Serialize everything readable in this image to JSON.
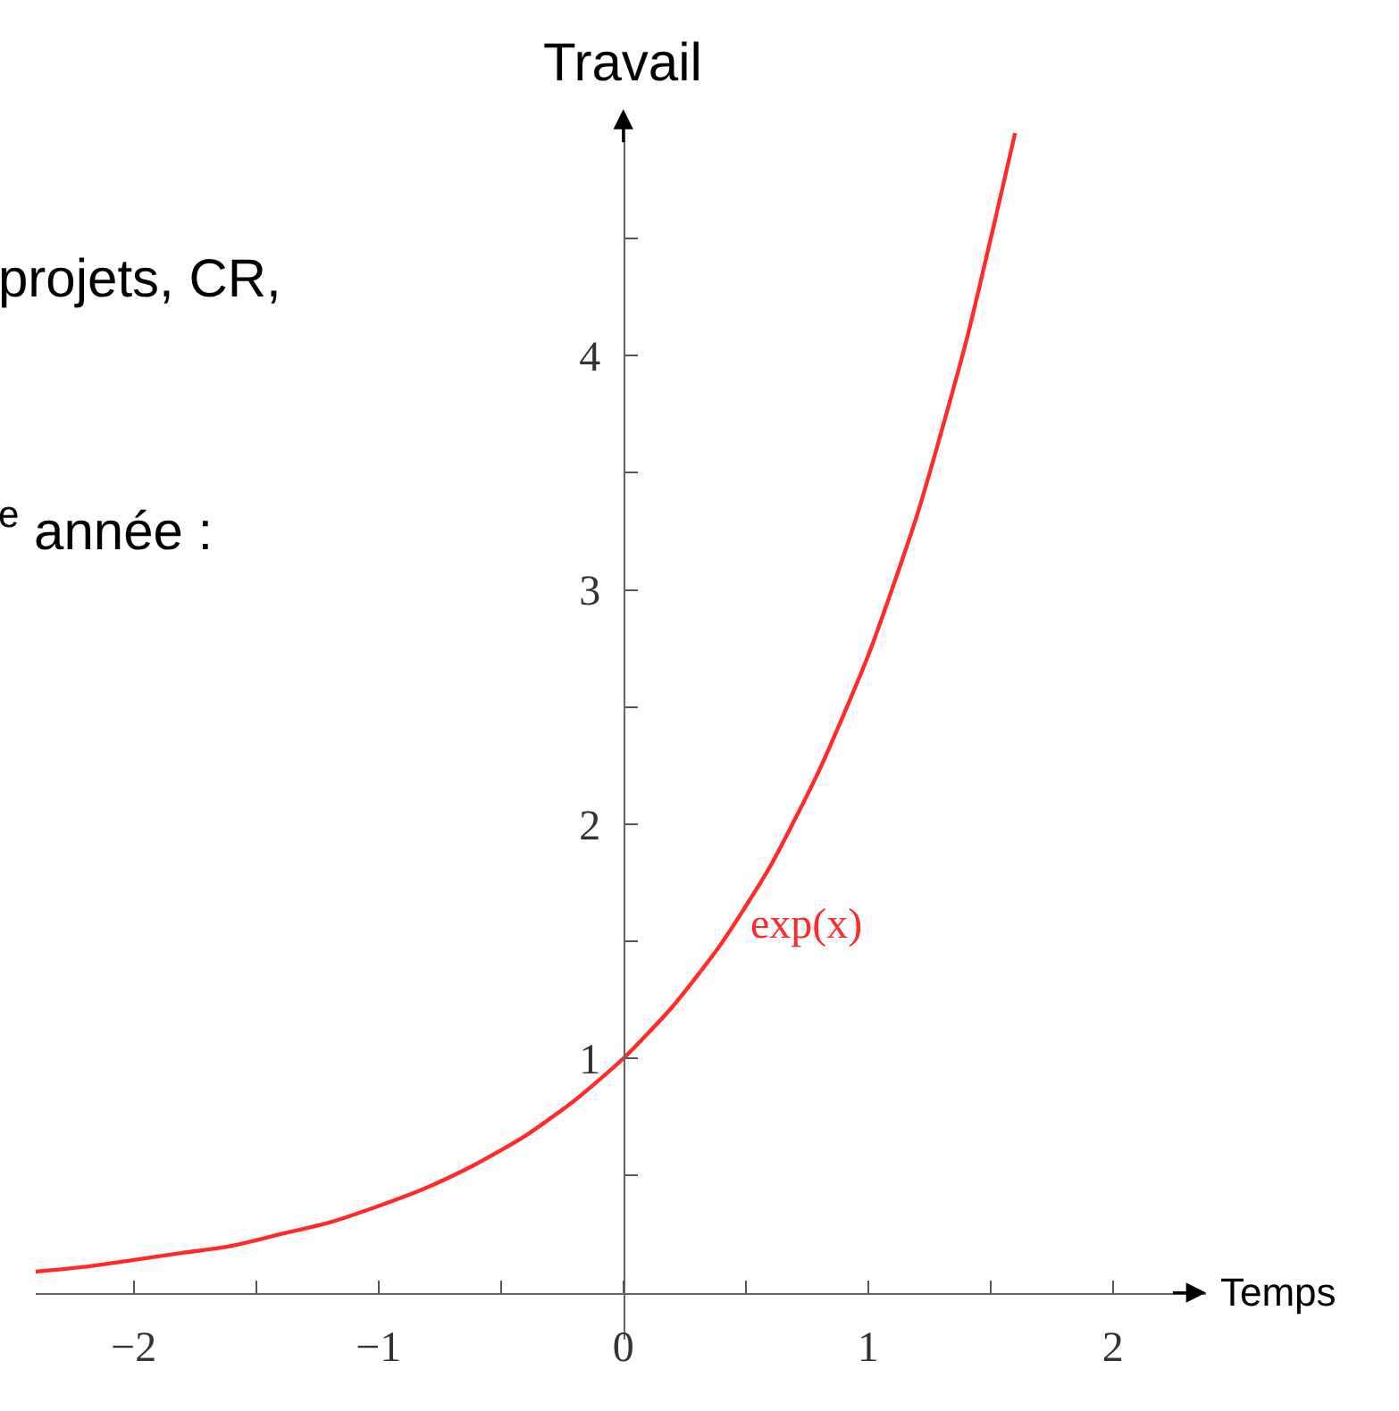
{
  "chart_data": {
    "type": "line",
    "xlabel": "Temps",
    "ylabel": "Travail",
    "x": [
      -2.4,
      -2.2,
      -2,
      -1.8,
      -1.6,
      -1.4,
      -1.2,
      -1,
      -0.8,
      -0.6,
      -0.4,
      -0.2,
      0,
      0.2,
      0.4,
      0.6,
      0.8,
      1,
      1.2,
      1.4,
      1.6
    ],
    "series": [
      {
        "color": "#ff2a2a",
        "values": [
          0.09,
          0.11,
          0.14,
          0.17,
          0.2,
          0.25,
          0.3,
          0.37,
          0.45,
          0.55,
          0.67,
          0.82,
          1,
          1.22,
          1.49,
          1.82,
          2.23,
          2.72,
          3.32,
          4.06,
          4.95
        ]
      }
    ],
    "xlim": [
      -2.4,
      2.38
    ],
    "ylim": [
      -0.2,
      5.0
    ],
    "xticks": [
      {
        "value": -2,
        "label": "−2"
      },
      {
        "value": -1.5,
        "label": null
      },
      {
        "value": -1,
        "label": "−1"
      },
      {
        "value": -0.5,
        "label": null
      },
      {
        "value": 0,
        "label": "0"
      },
      {
        "value": 0.5,
        "label": null
      },
      1,
      {
        "value": 1.5,
        "label": null
      },
      2
    ],
    "yticks": [
      {
        "value": 0.5,
        "label": null
      },
      1,
      {
        "value": 1.5,
        "label": null
      },
      2,
      {
        "value": 2.5,
        "label": null
      },
      3,
      {
        "value": 3.5,
        "label": null
      },
      4,
      {
        "value": 4.5,
        "label": null
      }
    ],
    "annotations": [
      "exp(x)",
      "projets, CR,",
      "$^{e}$ année :"
    ],
    "grid": false,
    "marker": "none",
    "line_style": "solid"
  }
}
